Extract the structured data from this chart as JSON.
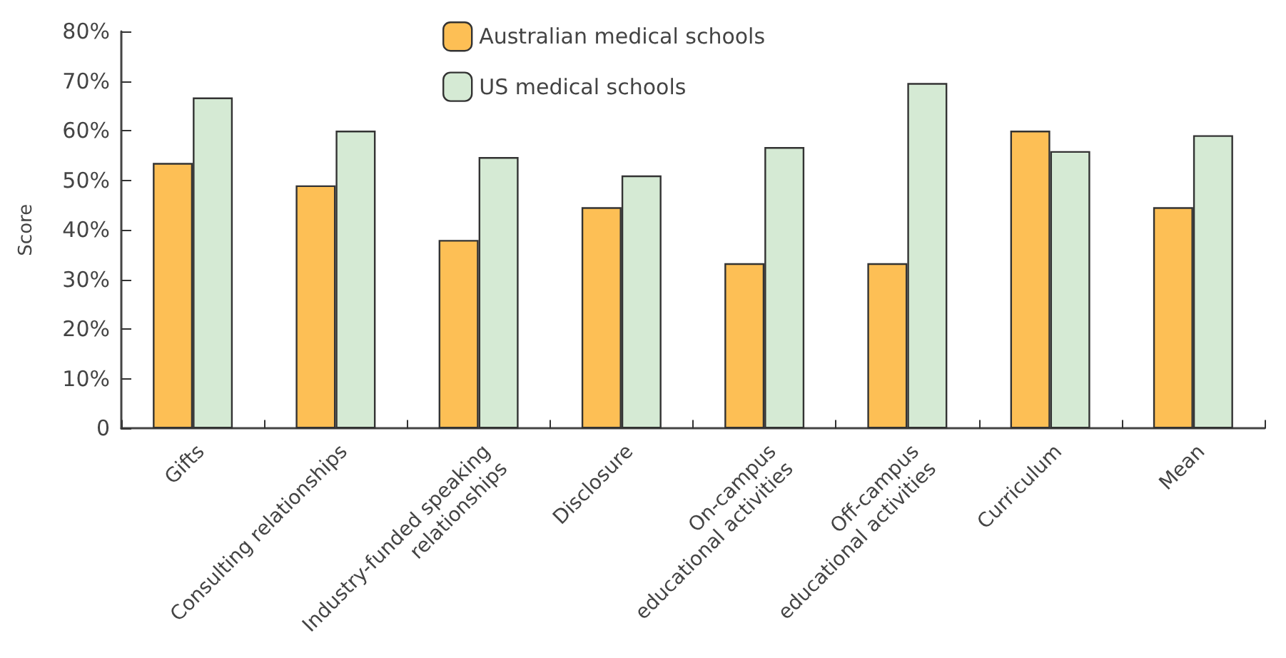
{
  "chart_data": {
    "type": "bar",
    "ylabel": "Score",
    "categories": [
      "Gifts",
      "Consulting relationships",
      "Industry-funded speaking\nrelationships",
      "Disclosure",
      "On-campus\neducational activities",
      "Off-campus\neducational activities",
      "Curriculum",
      "Mean"
    ],
    "series": [
      {
        "name": "Australian medical schools",
        "color": "#fdbf55",
        "values": [
          53.5,
          49,
          38,
          44.6,
          33.3,
          33.3,
          60,
          44.6
        ]
      },
      {
        "name": "US medical schools",
        "color": "#d5ead4",
        "values": [
          66.7,
          60,
          54.7,
          51,
          56.7,
          69.6,
          55.9,
          59.1
        ]
      }
    ],
    "ylim": [
      0,
      80
    ],
    "yticks": [
      0,
      {
        "value": 10,
        "label": "10%"
      },
      {
        "value": 20,
        "label": "20%"
      },
      {
        "value": 30,
        "label": "30%"
      },
      {
        "value": 40,
        "label": "40%"
      },
      {
        "value": 50,
        "label": "50%"
      },
      {
        "value": 60,
        "label": "60%"
      },
      {
        "value": 70,
        "label": "70%"
      },
      {
        "value": 80,
        "label": "80%"
      }
    ],
    "grid": false,
    "legend": "top"
  }
}
